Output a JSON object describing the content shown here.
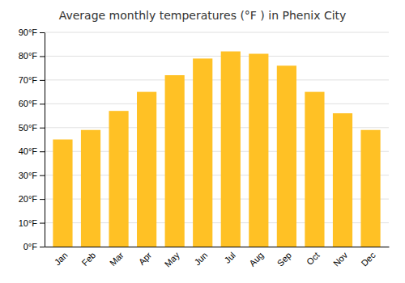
{
  "chart_data": {
    "type": "bar",
    "title": "Average monthly temperatures (°F ) in Phenix City",
    "categories": [
      "Jan",
      "Feb",
      "Mar",
      "Apr",
      "May",
      "Jun",
      "Jul",
      "Aug",
      "Sep",
      "Oct",
      "Nov",
      "Dec"
    ],
    "values": [
      45,
      49,
      57,
      65,
      72,
      79,
      82,
      81,
      76,
      65,
      56,
      49
    ],
    "color": "#FFC125",
    "ylim": [
      0,
      90
    ],
    "yticks": [
      {
        "value": 0,
        "label": "0°F"
      },
      {
        "value": 10,
        "label": "10°F"
      },
      {
        "value": 20,
        "label": "20°F"
      },
      {
        "value": 30,
        "label": "30°F"
      },
      {
        "value": 40,
        "label": "40°F"
      },
      {
        "value": 50,
        "label": "50°F"
      },
      {
        "value": 60,
        "label": "60°F"
      },
      {
        "value": 70,
        "label": "70°F"
      },
      {
        "value": 80,
        "label": "80°F"
      },
      {
        "value": 90,
        "label": "90°F"
      }
    ],
    "grid": true
  }
}
